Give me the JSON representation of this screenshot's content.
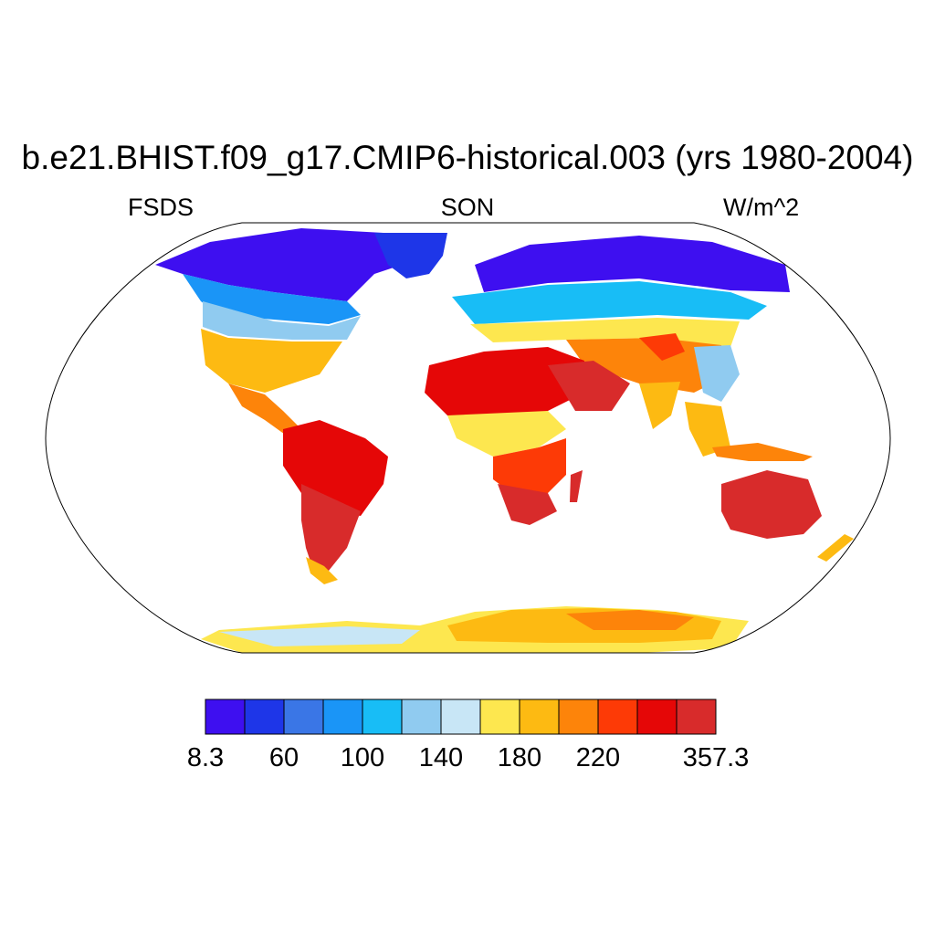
{
  "title": "b.e21.BHIST.f09_g17.CMIP6-historical.003 (yrs 1980-2004)",
  "variable": "FSDS",
  "season": "SON",
  "units": "W/m^2",
  "colorbar": {
    "colors": [
      "#3e0ff0",
      "#1e36e8",
      "#3a76e6",
      "#1a95f7",
      "#18bdf6",
      "#90cbf0",
      "#c8e6f6",
      "#fde74f",
      "#fdba12",
      "#fd840a",
      "#fd3a06",
      "#e50707",
      "#d82b2b"
    ],
    "labels": [
      "8.3",
      "60",
      "100",
      "140",
      "180",
      "220",
      "357.3"
    ]
  },
  "chart_data": {
    "type": "heatmap",
    "projection": "Robinson",
    "variable": "FSDS",
    "season": "SON",
    "units": "W/m^2",
    "range": [
      8.3,
      357.3
    ],
    "levels": [
      8.3,
      60,
      100,
      140,
      180,
      220,
      357.3
    ],
    "num_color_bins": 13,
    "regions": [
      {
        "name": "Arctic / northern Canada / Greenland margin",
        "value_range": [
          8.3,
          60
        ]
      },
      {
        "name": "Northern Eurasia",
        "value_range": [
          8.3,
          100
        ]
      },
      {
        "name": "Southern Canada / northern Europe",
        "value_range": [
          100,
          160
        ]
      },
      {
        "name": "United States / Mediterranean",
        "value_range": [
          160,
          220
        ]
      },
      {
        "name": "Sahara / Arabia",
        "value_range": [
          240,
          357.3
        ]
      },
      {
        "name": "Amazon / Southern Africa",
        "value_range": [
          240,
          357.3
        ]
      },
      {
        "name": "Australia",
        "value_range": [
          260,
          357.3
        ]
      },
      {
        "name": "Antarctica",
        "value_range": [
          160,
          220
        ]
      }
    ]
  }
}
